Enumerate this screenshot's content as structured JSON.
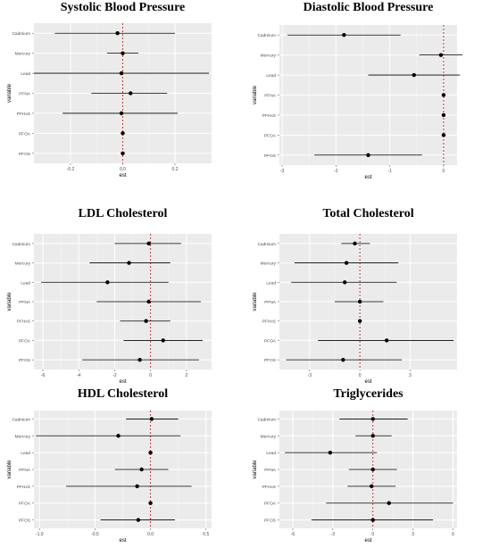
{
  "chart_data": [
    {
      "type": "forest",
      "title": "Systolic Blood Pressure",
      "xlabel": "est",
      "ylabel": "variable",
      "xlim": [
        -0.34,
        0.34
      ],
      "xticks": [
        -0.2,
        0.0,
        0.2
      ],
      "xtick_labels": [
        "-0.2",
        "0.0",
        "0.2"
      ],
      "reference_line": 0,
      "grid": true,
      "variables": [
        "Cadmium",
        "Mercury",
        "Lead",
        "PFNA",
        "PFHxS",
        "PFOA",
        "PFOS"
      ],
      "estimates": [
        -0.02,
        0.0,
        -0.005,
        0.03,
        -0.005,
        0.0,
        0.0
      ],
      "lower": [
        -0.26,
        -0.06,
        -0.34,
        -0.12,
        -0.23,
        0.0,
        0.0
      ],
      "upper": [
        0.2,
        0.06,
        0.33,
        0.17,
        0.21,
        0.0,
        0.0
      ]
    },
    {
      "type": "forest",
      "title": "Diastolic Blood Pressure",
      "xlabel": "est",
      "ylabel": "variable",
      "xlim": [
        -3.05,
        0.25
      ],
      "xticks": [
        -3,
        -2,
        -1,
        0
      ],
      "xtick_labels": [
        "-3",
        "-2",
        "-1",
        "0"
      ],
      "reference_line": 0,
      "grid": true,
      "variables": [
        "Cadmium",
        "Mercury",
        "Lead",
        "PFNA",
        "PFHxS",
        "PFOA",
        "PFOS"
      ],
      "estimates": [
        -1.85,
        -0.05,
        -0.55,
        0.0,
        0.0,
        0.0,
        -1.4
      ],
      "lower": [
        -2.9,
        -0.45,
        -1.4,
        0.0,
        0.0,
        0.0,
        -2.4
      ],
      "upper": [
        -0.8,
        0.35,
        0.3,
        0.0,
        0.0,
        0.0,
        -0.4
      ]
    },
    {
      "type": "forest",
      "title": "LDL Cholesterol",
      "xlabel": "est",
      "ylabel": "variable",
      "xlim": [
        -6.5,
        3.4
      ],
      "xticks": [
        -6,
        -4,
        -2,
        0,
        2
      ],
      "xtick_labels": [
        "-6",
        "-4",
        "-2",
        "0",
        "2"
      ],
      "reference_line": 0,
      "grid": true,
      "variables": [
        "Cadmium",
        "Mercury",
        "Lead",
        "PFNA",
        "PFHxS",
        "PFOA",
        "PFOS"
      ],
      "estimates": [
        -0.1,
        -1.2,
        -2.4,
        -0.1,
        -0.25,
        0.7,
        -0.6
      ],
      "lower": [
        -2.0,
        -3.4,
        -6.1,
        -3.0,
        -1.7,
        -1.5,
        -3.8
      ],
      "upper": [
        1.7,
        1.1,
        1.0,
        2.8,
        1.1,
        2.9,
        2.7
      ]
    },
    {
      "type": "forest",
      "title": "Total Cholesterol",
      "xlabel": "est",
      "ylabel": "variable",
      "xlim": [
        -4.8,
        5.8
      ],
      "xticks": [
        -3,
        0,
        3
      ],
      "xtick_labels": [
        "-3",
        "0",
        "3"
      ],
      "reference_line": 0,
      "grid": true,
      "variables": [
        "Cadmium",
        "Mercury",
        "Lead",
        "PFNA",
        "PFHxS",
        "PFOA",
        "PFOS"
      ],
      "estimates": [
        -0.3,
        -0.8,
        -0.9,
        0.0,
        0.0,
        1.6,
        -1.0
      ],
      "lower": [
        -1.1,
        -3.9,
        -4.1,
        -1.5,
        0.0,
        -2.5,
        -4.4
      ],
      "upper": [
        0.6,
        2.3,
        2.2,
        1.4,
        0.0,
        5.6,
        2.5
      ]
    },
    {
      "type": "forest",
      "title": "HDL Cholesterol",
      "xlabel": "est",
      "ylabel": "variable",
      "xlim": [
        -1.05,
        0.55
      ],
      "xticks": [
        -1.0,
        -0.5,
        0.0,
        0.5
      ],
      "xtick_labels": [
        "-1.0",
        "-0.5",
        "0.0",
        "0.5"
      ],
      "reference_line": 0,
      "grid": true,
      "variables": [
        "Cadmium",
        "Mercury",
        "Lead",
        "PFNA",
        "PFHxS",
        "PFOA",
        "PFOS"
      ],
      "estimates": [
        0.01,
        -0.29,
        0.0,
        -0.08,
        -0.12,
        0.0,
        -0.11
      ],
      "lower": [
        -0.22,
        -1.03,
        0.0,
        -0.32,
        -0.76,
        0.0,
        -0.45
      ],
      "upper": [
        0.25,
        0.27,
        0.0,
        0.16,
        0.37,
        0.0,
        0.22
      ]
    },
    {
      "type": "forest",
      "title": "Triglycerides",
      "xlabel": "est",
      "ylabel": "variable",
      "xlim": [
        -7.0,
        6.3
      ],
      "xticks": [
        -6,
        -3,
        0,
        3,
        6
      ],
      "xtick_labels": [
        "-6",
        "-3",
        "0",
        "3",
        "6"
      ],
      "reference_line": 0,
      "grid": true,
      "variables": [
        "Cadmium",
        "Mercury",
        "Lead",
        "PFNA",
        "PFHxS",
        "PFOA",
        "PFOS"
      ],
      "estimates": [
        0.0,
        0.0,
        -3.2,
        0.0,
        -0.1,
        1.2,
        0.0
      ],
      "lower": [
        -2.5,
        -1.3,
        -6.6,
        -1.8,
        -1.9,
        -3.5,
        -4.6
      ],
      "upper": [
        2.6,
        1.4,
        0.3,
        1.8,
        1.7,
        6.0,
        4.5
      ]
    }
  ]
}
